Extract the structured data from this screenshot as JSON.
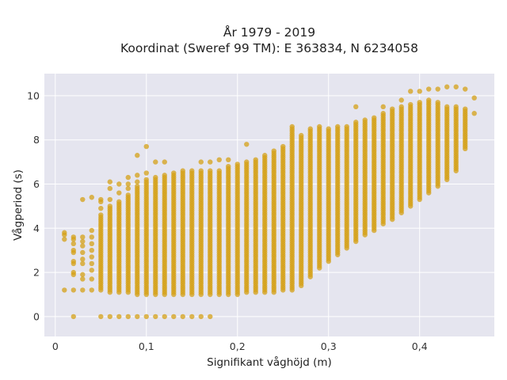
{
  "chart_data": {
    "type": "scatter",
    "title_line1": "År 1979 - 2019",
    "title_line2": "Koordinat (Sweref 99 TM): E 363834, N 6234058",
    "xlabel": "Signifikant våghöjd (m)",
    "ylabel": "Vågperiod (s)",
    "xlim": [
      -0.012,
      0.482
    ],
    "ylim": [
      -0.9,
      11.0
    ],
    "x_ticks": [
      0,
      0.1,
      0.2,
      0.3,
      0.4
    ],
    "x_tick_labels": [
      "0",
      "0,1",
      "0,2",
      "0,3",
      "0,4"
    ],
    "y_ticks": [
      0,
      2,
      4,
      6,
      8,
      10
    ],
    "y_tick_labels": [
      "0",
      "2",
      "4",
      "6",
      "8",
      "10"
    ],
    "grid": true,
    "marker_color": "#D4A017",
    "plot_bg": "#E5E5EF",
    "x_step": 0.01,
    "columns": [
      {
        "x": 0.01,
        "y": [
          1.2,
          3.5,
          3.7,
          3.8
        ]
      },
      {
        "x": 0.02,
        "y": [
          0.0,
          1.2,
          1.9,
          2.0,
          2.4,
          2.5,
          2.9,
          3.0,
          3.3,
          3.5,
          3.6
        ]
      },
      {
        "x": 0.03,
        "y": [
          1.2,
          1.7,
          1.9,
          2.4,
          2.6,
          2.9,
          3.2,
          3.4,
          3.6,
          5.3
        ]
      },
      {
        "x": 0.04,
        "y": [
          1.2,
          1.7,
          2.1,
          2.4,
          2.7,
          3.0,
          3.3,
          3.6,
          3.9,
          5.4
        ]
      },
      {
        "x": 0.05,
        "y_range": [
          1.2,
          4.6
        ],
        "extra": [
          0.0,
          4.9,
          5.2,
          5.3
        ]
      },
      {
        "x": 0.06,
        "y_range": [
          1.1,
          5.0
        ],
        "extra": [
          0.0,
          5.3,
          5.8,
          6.1
        ]
      },
      {
        "x": 0.07,
        "y_range": [
          1.1,
          5.2
        ],
        "extra": [
          0.0,
          5.6,
          6.0
        ]
      },
      {
        "x": 0.08,
        "y_range": [
          1.1,
          5.5
        ],
        "extra": [
          0.0,
          5.8,
          6.0,
          6.3
        ]
      },
      {
        "x": 0.09,
        "y_range": [
          1.0,
          5.9
        ],
        "extra": [
          0.0,
          6.1,
          6.4,
          7.3
        ]
      },
      {
        "x": 0.1,
        "y_range": [
          1.0,
          6.2
        ],
        "extra": [
          0.0,
          6.5,
          7.7
        ]
      },
      {
        "x": 0.11,
        "y_range": [
          1.0,
          6.3
        ],
        "extra": [
          0.0,
          7.0
        ]
      },
      {
        "x": 0.12,
        "y_range": [
          1.0,
          6.4
        ],
        "extra": [
          0.0,
          7.0
        ]
      },
      {
        "x": 0.13,
        "y_range": [
          1.0,
          6.5
        ],
        "extra": [
          0.0
        ]
      },
      {
        "x": 0.14,
        "y_range": [
          1.0,
          6.6
        ],
        "extra": [
          0.0
        ]
      },
      {
        "x": 0.15,
        "y_range": [
          1.0,
          6.6
        ],
        "extra": [
          0.0
        ]
      },
      {
        "x": 0.16,
        "y_range": [
          1.0,
          6.6
        ],
        "extra": [
          0.0,
          7.0
        ]
      },
      {
        "x": 0.17,
        "y_range": [
          1.0,
          6.6
        ],
        "extra": [
          0.0,
          7.0
        ]
      },
      {
        "x": 0.18,
        "y_range": [
          1.0,
          6.6
        ],
        "extra": [
          7.1
        ]
      },
      {
        "x": 0.19,
        "y_range": [
          1.0,
          6.8
        ],
        "extra": [
          7.1
        ]
      },
      {
        "x": 0.2,
        "y_range": [
          1.0,
          6.9
        ]
      },
      {
        "x": 0.21,
        "y_range": [
          1.1,
          7.0
        ],
        "extra": [
          7.8
        ]
      },
      {
        "x": 0.22,
        "y_range": [
          1.1,
          7.1
        ]
      },
      {
        "x": 0.23,
        "y_range": [
          1.1,
          7.3
        ]
      },
      {
        "x": 0.24,
        "y_range": [
          1.1,
          7.5
        ]
      },
      {
        "x": 0.25,
        "y_range": [
          1.2,
          7.7
        ]
      },
      {
        "x": 0.26,
        "y_range": [
          1.2,
          8.6
        ]
      },
      {
        "x": 0.27,
        "y_range": [
          1.4,
          8.2
        ]
      },
      {
        "x": 0.28,
        "y_range": [
          1.8,
          8.5
        ]
      },
      {
        "x": 0.29,
        "y_range": [
          2.2,
          8.6
        ]
      },
      {
        "x": 0.3,
        "y_range": [
          2.5,
          8.5
        ]
      },
      {
        "x": 0.31,
        "y_range": [
          2.8,
          8.6
        ]
      },
      {
        "x": 0.32,
        "y_range": [
          3.1,
          8.6
        ]
      },
      {
        "x": 0.33,
        "y_range": [
          3.4,
          8.8
        ],
        "extra": [
          9.5
        ]
      },
      {
        "x": 0.34,
        "y_range": [
          3.7,
          8.9
        ]
      },
      {
        "x": 0.35,
        "y_range": [
          3.9,
          9.0
        ]
      },
      {
        "x": 0.36,
        "y_range": [
          4.2,
          9.2
        ],
        "extra": [
          9.5
        ]
      },
      {
        "x": 0.37,
        "y_range": [
          4.4,
          9.4
        ]
      },
      {
        "x": 0.38,
        "y_range": [
          4.7,
          9.5
        ],
        "extra": [
          9.8
        ]
      },
      {
        "x": 0.39,
        "y_range": [
          5.0,
          9.6
        ],
        "extra": [
          10.2
        ]
      },
      {
        "x": 0.4,
        "y_range": [
          5.3,
          9.7
        ],
        "extra": [
          10.2
        ]
      },
      {
        "x": 0.41,
        "y_range": [
          5.6,
          9.8
        ],
        "extra": [
          10.3
        ]
      },
      {
        "x": 0.42,
        "y_range": [
          5.9,
          9.7
        ],
        "extra": [
          10.3
        ]
      },
      {
        "x": 0.43,
        "y_range": [
          6.2,
          9.5
        ],
        "extra": [
          10.4
        ]
      },
      {
        "x": 0.44,
        "y_range": [
          6.6,
          9.5
        ],
        "extra": [
          10.4
        ]
      },
      {
        "x": 0.45,
        "y_range": [
          7.6,
          9.4
        ],
        "extra": [
          10.3
        ]
      },
      {
        "x": 0.46,
        "y": [
          9.2,
          9.9
        ]
      }
    ]
  }
}
